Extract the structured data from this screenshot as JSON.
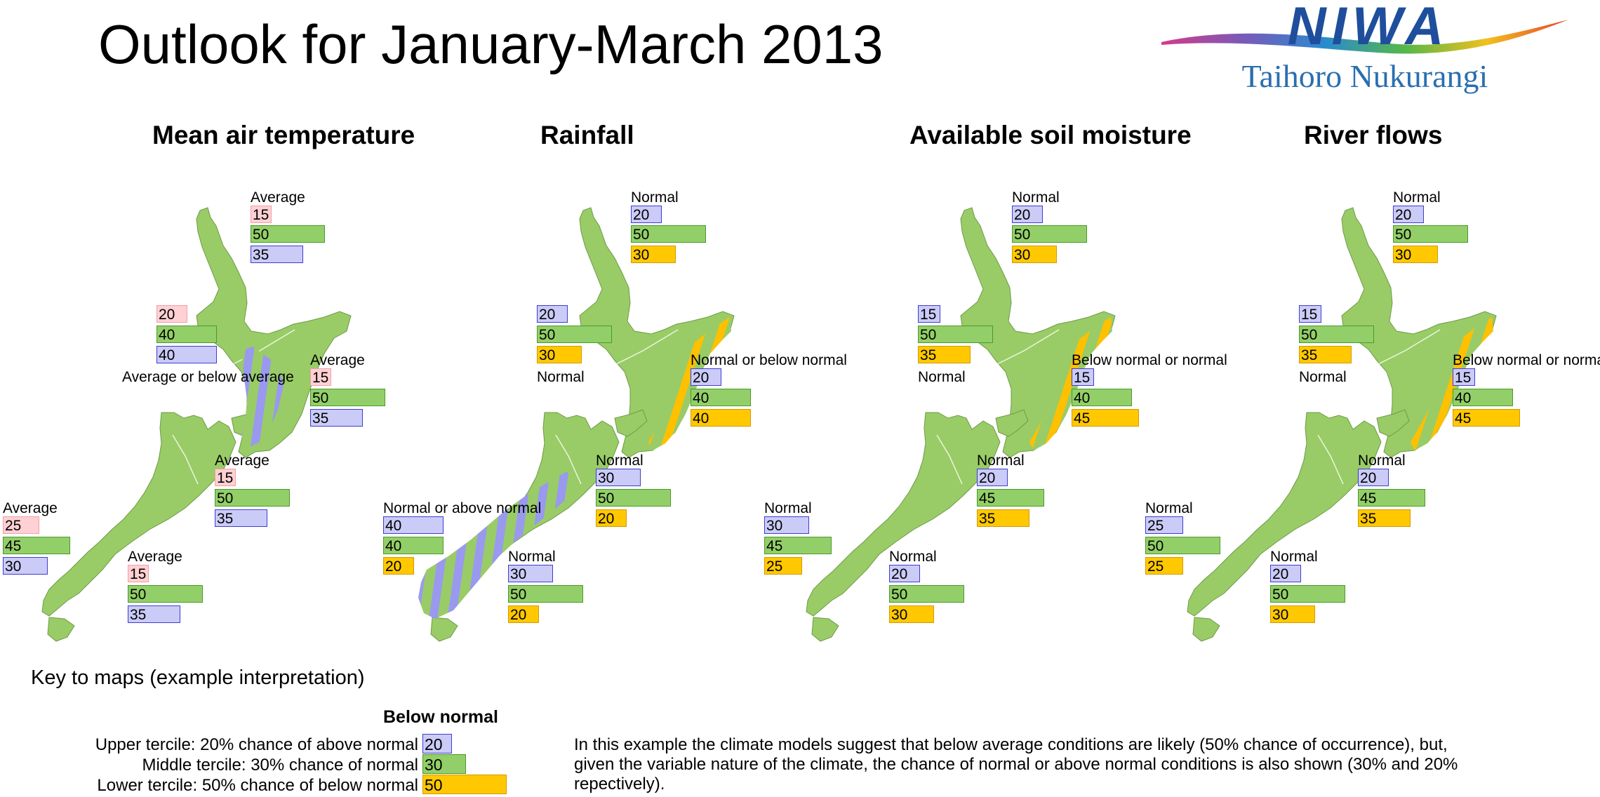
{
  "title": "Outlook for January-March 2013",
  "logo": {
    "name": "NIWA",
    "tagline": "Taihoro Nukurangi"
  },
  "colors": {
    "land": "#99cc66",
    "above": "#cbcbf8",
    "normal": "#93cf68",
    "below": "#ffc800",
    "temp_above": "#ffd0d4",
    "hatch_blue": "#9999f0",
    "hatch_orange": "#ffc000"
  },
  "panels": [
    {
      "title": "Mean air temperature",
      "regions": [
        {
          "label": "Average",
          "values": [
            "15",
            "50",
            "35"
          ]
        },
        {
          "label": "Average or below average",
          "values": [
            "20",
            "40",
            "40"
          ]
        },
        {
          "label": "Average",
          "values": [
            "15",
            "50",
            "35"
          ]
        },
        {
          "label": "Average",
          "values": [
            "15",
            "50",
            "35"
          ]
        },
        {
          "label": "Average",
          "values": [
            "25",
            "45",
            "30"
          ]
        },
        {
          "label": "Average",
          "values": [
            "15",
            "50",
            "35"
          ]
        }
      ]
    },
    {
      "title": "Rainfall",
      "regions": [
        {
          "label": "Normal",
          "values": [
            "20",
            "50",
            "30"
          ]
        },
        {
          "label": "Normal",
          "values": [
            "20",
            "50",
            "30"
          ]
        },
        {
          "label": "Normal or below normal",
          "values": [
            "20",
            "40",
            "40"
          ]
        },
        {
          "label": "Normal",
          "values": [
            "30",
            "50",
            "20"
          ]
        },
        {
          "label": "Normal or above normal",
          "values": [
            "40",
            "40",
            "20"
          ]
        },
        {
          "label": "Normal",
          "values": [
            "30",
            "50",
            "20"
          ]
        }
      ]
    },
    {
      "title": "Available soil moisture",
      "regions": [
        {
          "label": "Normal",
          "values": [
            "20",
            "50",
            "30"
          ]
        },
        {
          "label": "Normal",
          "values": [
            "15",
            "50",
            "35"
          ]
        },
        {
          "label": "Below normal or normal",
          "values": [
            "15",
            "40",
            "45"
          ]
        },
        {
          "label": "Normal",
          "values": [
            "20",
            "45",
            "35"
          ]
        },
        {
          "label": "Normal",
          "values": [
            "30",
            "45",
            "25"
          ]
        },
        {
          "label": "Normal",
          "values": [
            "20",
            "50",
            "30"
          ]
        }
      ]
    },
    {
      "title": "River flows",
      "regions": [
        {
          "label": "Normal",
          "values": [
            "20",
            "50",
            "30"
          ]
        },
        {
          "label": "Normal",
          "values": [
            "15",
            "50",
            "35"
          ]
        },
        {
          "label": "Below normal or normal",
          "values": [
            "15",
            "40",
            "45"
          ]
        },
        {
          "label": "Normal",
          "values": [
            "20",
            "45",
            "35"
          ]
        },
        {
          "label": "Normal",
          "values": [
            "25",
            "50",
            "25"
          ]
        },
        {
          "label": "Normal",
          "values": [
            "20",
            "50",
            "30"
          ]
        }
      ]
    }
  ],
  "key": {
    "title": "Key to maps (example interpretation)",
    "heading": "Below normal",
    "lines": [
      {
        "text": "Upper tercile: 20% chance of above normal",
        "value": "20"
      },
      {
        "text": "Middle tercile: 30% chance of normal",
        "value": "30"
      },
      {
        "text": "Lower tercile: 50% chance of below normal",
        "value": "50"
      }
    ],
    "note": "In this example the climate models suggest that below average conditions are likely (50% chance of occurrence), but, given the variable nature of the climate, the chance of normal or above normal conditions is also shown (30% and 20% repectively)."
  }
}
